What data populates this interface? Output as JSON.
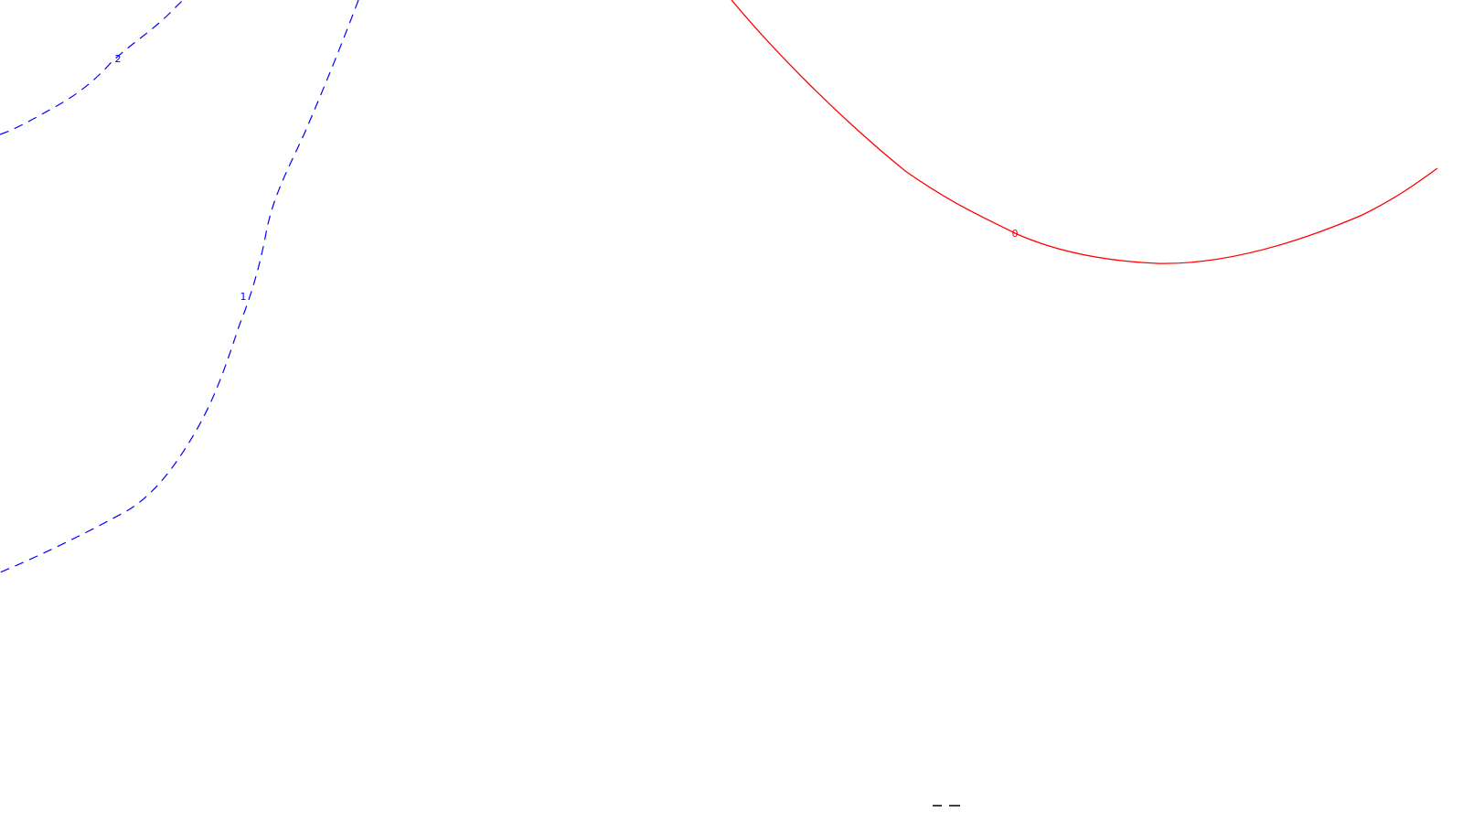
{
  "chart_data": {
    "type": "contour",
    "levels": [
      {
        "value": 0,
        "label": "0",
        "color": "#ff0000",
        "style": "solid"
      },
      {
        "value": 1,
        "label": "1",
        "color": "#0000ff",
        "style": "dashed"
      },
      {
        "value": 2,
        "label": "2",
        "color": "#0000ff",
        "style": "dashed"
      }
    ],
    "edge_mark_color": "#000000"
  }
}
